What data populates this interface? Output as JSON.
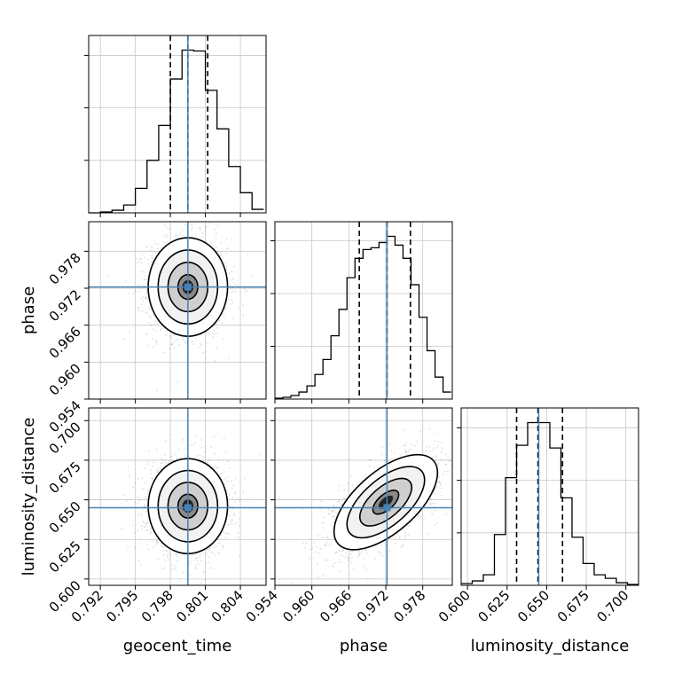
{
  "chart_data": {
    "type": "corner",
    "parameters": [
      {
        "name": "geocent_time",
        "axis_label": "geocent_time",
        "truth": 0.7995,
        "lim": [
          0.791,
          0.8062
        ],
        "ticks": [
          "0.792",
          "0.795",
          "0.798",
          "0.801",
          "0.804"
        ],
        "tick_values": [
          0.792,
          0.795,
          0.798,
          0.801,
          0.804
        ],
        "quantiles": [
          0.798,
          0.7995,
          0.8012
        ],
        "median": 0.7995,
        "hist_bins": [
          0.791,
          0.792,
          0.793,
          0.794,
          0.795,
          0.796,
          0.797,
          0.798,
          0.799,
          0.8,
          0.801,
          0.802,
          0.803,
          0.804,
          0.805,
          0.806
        ],
        "hist_counts": [
          0,
          1,
          3,
          9,
          28,
          60,
          100,
          153,
          186,
          185,
          140,
          96,
          53,
          23,
          4
        ]
      },
      {
        "name": "phase",
        "axis_label": "phase",
        "truth": 0.9722,
        "lim": [
          0.954,
          0.9828
        ],
        "ticks": [
          "0.954",
          "0.960",
          "0.966",
          "0.972",
          "0.978"
        ],
        "tick_values": [
          0.954,
          0.96,
          0.966,
          0.972,
          0.978
        ],
        "quantiles": [
          0.9677,
          0.9722,
          0.976
        ],
        "median": 0.9722,
        "hist_bins": [
          0.954,
          0.9553,
          0.9566,
          0.9579,
          0.9592,
          0.9605,
          0.9618,
          0.9631,
          0.9644,
          0.9657,
          0.967,
          0.9683,
          0.9696,
          0.9709,
          0.9722,
          0.9735,
          0.9748,
          0.9761,
          0.9774,
          0.9787,
          0.98,
          0.9813,
          0.9826
        ],
        "hist_counts": [
          1,
          2,
          4,
          8,
          15,
          28,
          45,
          72,
          102,
          138,
          160,
          170,
          172,
          178,
          185,
          175,
          160,
          130,
          93,
          55,
          25,
          8
        ]
      },
      {
        "name": "luminosity_distance",
        "axis_label": "luminosity_distance",
        "truth": 0.645,
        "lim": [
          0.596,
          0.708
        ],
        "ticks": [
          "0.600",
          "0.625",
          "0.650",
          "0.675",
          "0.700"
        ],
        "tick_values": [
          0.6,
          0.625,
          0.65,
          0.675,
          0.7
        ],
        "quantiles": [
          0.631,
          0.6445,
          0.66
        ],
        "median": 0.6445,
        "hist_bins": [
          0.596,
          0.603,
          0.61,
          0.617,
          0.624,
          0.631,
          0.638,
          0.645,
          0.652,
          0.659,
          0.666,
          0.673,
          0.68,
          0.687,
          0.694,
          0.701,
          0.708
        ],
        "hist_counts": [
          2,
          5,
          12,
          58,
          123,
          160,
          186,
          186,
          157,
          100,
          55,
          25,
          12,
          8,
          3,
          1
        ]
      }
    ],
    "pairs": [
      {
        "x": "geocent_time",
        "y": "phase",
        "center": [
          0.7995,
          0.9722
        ],
        "sigma": [
          0.0017,
          0.004
        ],
        "rho": 0.0
      },
      {
        "x": "geocent_time",
        "y": "luminosity_distance",
        "center": [
          0.7995,
          0.646
        ],
        "sigma": [
          0.0017,
          0.015
        ],
        "rho": 0.0
      },
      {
        "x": "phase",
        "y": "luminosity_distance",
        "center": [
          0.972,
          0.6485
        ],
        "sigma": [
          0.0042,
          0.015
        ],
        "rho": 0.62
      }
    ],
    "contour_levels_sigma": [
      0.5,
      1.0,
      1.5,
      2.0
    ],
    "truth_color": "#4682b4",
    "hist_color": "#000000",
    "quantile_line_style": "dashed",
    "grid": true
  }
}
